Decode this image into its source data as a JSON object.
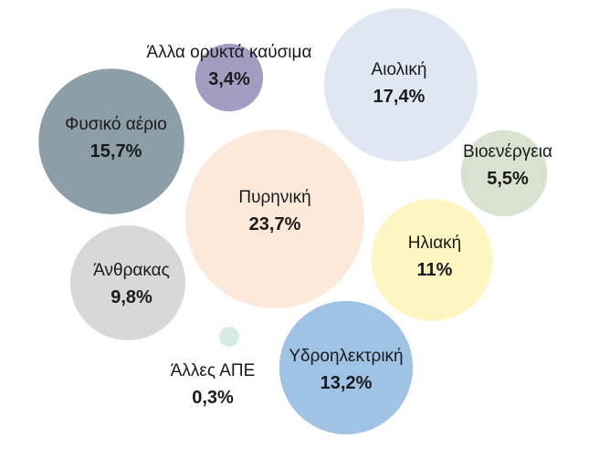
{
  "chart_data": {
    "type": "bubble",
    "title": "",
    "legend": "none",
    "grid": false,
    "bubbles": [
      {
        "name": "Πυρηνική",
        "value": 23.7,
        "value_label": "23,7%",
        "color": "#fde9d9"
      },
      {
        "name": "Αιολική",
        "value": 17.4,
        "value_label": "17,4%",
        "color": "#dfe7f3"
      },
      {
        "name": "Φυσικό αέριο",
        "value": 15.7,
        "value_label": "15,7%",
        "color": "#8c9ea8"
      },
      {
        "name": "Υδροηλεκτρική",
        "value": 13.2,
        "value_label": "13,2%",
        "color": "#9fc2e5"
      },
      {
        "name": "Ηλιακή",
        "value": 11,
        "value_label": "11%",
        "color": "#fdf5c2"
      },
      {
        "name": "Άνθρακας",
        "value": 9.8,
        "value_label": "9,8%",
        "color": "#d8d8d8"
      },
      {
        "name": "Βιοενέργεια",
        "value": 5.5,
        "value_label": "5,5%",
        "color": "#d9e1d1"
      },
      {
        "name": "Άλλα ορυκτά καύσιμα",
        "value": 3.4,
        "value_label": "3,4%",
        "color": "#a29ec2"
      },
      {
        "name": "Άλλες ΑΠΕ",
        "value": 0.3,
        "value_label": "0,3%",
        "color": "#d6ebe4"
      }
    ]
  }
}
